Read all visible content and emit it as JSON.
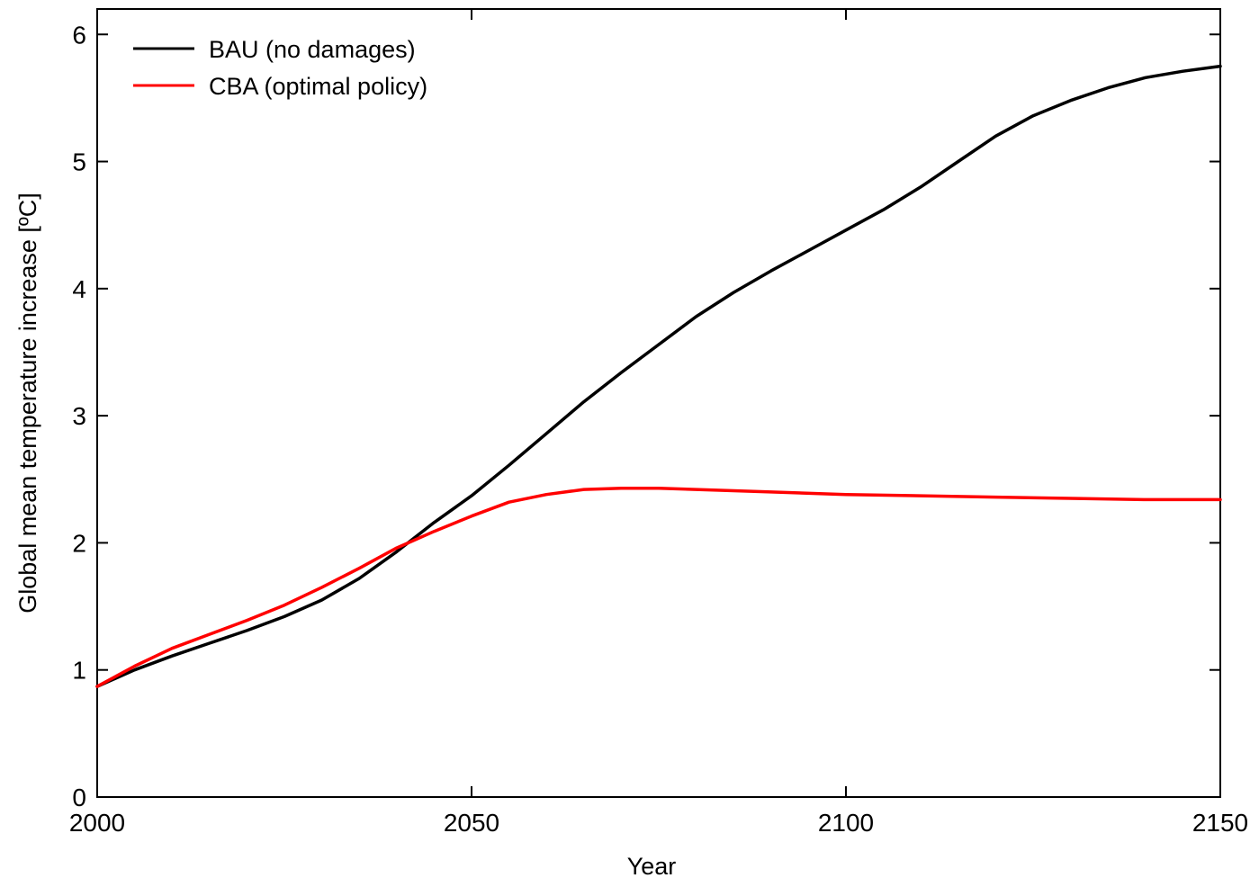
{
  "chart_data": {
    "type": "line",
    "title": "",
    "xlabel": "Year",
    "ylabel": "Global mean temperature increase [ºC]",
    "xlim": [
      2000,
      2150
    ],
    "ylim": [
      0,
      6.2
    ],
    "xticks": [
      2000,
      2050,
      2100,
      2150
    ],
    "xtick_labels": [
      "2000",
      "2050",
      "2100",
      "2150"
    ],
    "yticks": [
      0,
      1,
      2,
      3,
      4,
      5,
      6
    ],
    "ytick_labels": [
      "0",
      "1",
      "2",
      "3",
      "4",
      "5",
      "6"
    ],
    "grid": false,
    "legend_position": "top-left",
    "series": [
      {
        "name": "BAU (no damages)",
        "color": "#000000",
        "x": [
          2000,
          2005,
          2010,
          2015,
          2020,
          2025,
          2030,
          2035,
          2040,
          2045,
          2050,
          2055,
          2060,
          2065,
          2070,
          2075,
          2080,
          2085,
          2090,
          2095,
          2100,
          2105,
          2110,
          2115,
          2120,
          2125,
          2130,
          2135,
          2140,
          2145,
          2150
        ],
        "y": [
          0.87,
          1.0,
          1.11,
          1.21,
          1.31,
          1.42,
          1.55,
          1.72,
          1.93,
          2.16,
          2.37,
          2.61,
          2.86,
          3.11,
          3.34,
          3.56,
          3.78,
          3.97,
          4.14,
          4.3,
          4.46,
          4.62,
          4.8,
          5.0,
          5.2,
          5.36,
          5.48,
          5.58,
          5.66,
          5.71,
          5.75
        ]
      },
      {
        "name": "CBA (optimal policy)",
        "color": "#ff0000",
        "x": [
          2000,
          2005,
          2010,
          2015,
          2020,
          2025,
          2030,
          2035,
          2040,
          2045,
          2050,
          2055,
          2060,
          2065,
          2070,
          2075,
          2080,
          2090,
          2100,
          2110,
          2120,
          2130,
          2140,
          2150
        ],
        "y": [
          0.87,
          1.03,
          1.17,
          1.28,
          1.39,
          1.51,
          1.65,
          1.8,
          1.96,
          2.09,
          2.21,
          2.32,
          2.38,
          2.42,
          2.43,
          2.43,
          2.42,
          2.4,
          2.38,
          2.37,
          2.36,
          2.35,
          2.34,
          2.34
        ]
      }
    ]
  }
}
